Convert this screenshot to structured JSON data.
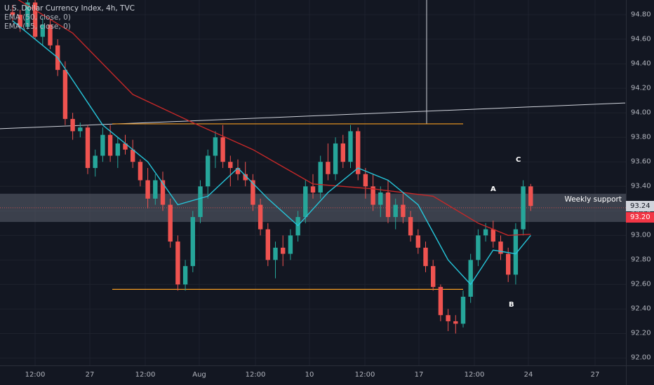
{
  "legend": {
    "title": "U.S. Dollar Currency Index, 4h, TVC",
    "ema50": "EMA (50, close, 0)",
    "ema15": "EMA (15, close, 0)"
  },
  "chart_data": {
    "type": "candlestick",
    "y_axis": {
      "ticks": [
        "94.80",
        "94.60",
        "94.40",
        "94.20",
        "94.00",
        "93.80",
        "93.60",
        "93.40",
        "93.20",
        "93.00",
        "92.80",
        "92.60",
        "92.40",
        "92.20",
        "92.00"
      ],
      "ylim": [
        91.94,
        94.92
      ]
    },
    "x_axis": {
      "ticks": [
        "12:00",
        "27",
        "12:00",
        "Aug",
        "12:00",
        "10",
        "12:00",
        "17",
        "12:00",
        "24",
        "27"
      ]
    },
    "price_tags": [
      {
        "value": "93.24",
        "style": "light"
      },
      {
        "value": "93.20",
        "style": "red"
      }
    ],
    "zones": [
      {
        "label": "Weekly support",
        "from": 93.11,
        "to": 93.34
      }
    ],
    "annotations": [
      {
        "text": "A",
        "y": 93.38
      },
      {
        "text": "B",
        "y": 92.48
      },
      {
        "text": "C",
        "y": 93.6
      }
    ],
    "horizontal_lines": [
      {
        "name": "resistance",
        "value": 93.91,
        "color": "#f59d20"
      },
      {
        "name": "support",
        "value": 92.56,
        "color": "#f59d20"
      }
    ],
    "colors": {
      "up": "#26a69a",
      "down": "#ef5350",
      "ema50": "#c62828",
      "ema15": "#26c6da",
      "zone": "#5d6270",
      "trend": "#d1d4dc",
      "background": "#131722"
    },
    "candles": [
      [
        94.82,
        94.88,
        94.74,
        94.8
      ],
      [
        94.8,
        94.84,
        94.66,
        94.7
      ],
      [
        94.7,
        94.92,
        94.68,
        94.9
      ],
      [
        94.9,
        94.92,
        94.6,
        94.62
      ],
      [
        94.62,
        94.78,
        94.55,
        94.72
      ],
      [
        94.72,
        94.76,
        94.52,
        94.55
      ],
      [
        94.55,
        94.6,
        94.3,
        94.35
      ],
      [
        94.35,
        94.42,
        93.9,
        93.95
      ],
      [
        93.95,
        94.0,
        93.78,
        93.85
      ],
      [
        93.85,
        93.92,
        93.8,
        93.88
      ],
      [
        93.88,
        93.9,
        93.5,
        93.55
      ],
      [
        93.55,
        93.7,
        93.48,
        93.65
      ],
      [
        93.65,
        93.88,
        93.6,
        93.82
      ],
      [
        93.82,
        93.9,
        93.6,
        93.65
      ],
      [
        93.65,
        93.8,
        93.55,
        93.75
      ],
      [
        93.75,
        93.82,
        93.66,
        93.7
      ],
      [
        93.7,
        93.78,
        93.55,
        93.6
      ],
      [
        93.6,
        93.62,
        93.4,
        93.45
      ],
      [
        93.45,
        93.55,
        93.22,
        93.3
      ],
      [
        93.3,
        93.5,
        93.25,
        93.45
      ],
      [
        93.45,
        93.52,
        93.2,
        93.25
      ],
      [
        93.25,
        93.3,
        92.9,
        92.95
      ],
      [
        92.95,
        93.0,
        92.55,
        92.6
      ],
      [
        92.6,
        92.8,
        92.55,
        92.75
      ],
      [
        92.75,
        93.2,
        92.7,
        93.15
      ],
      [
        93.15,
        93.45,
        93.1,
        93.4
      ],
      [
        93.4,
        93.7,
        93.3,
        93.65
      ],
      [
        93.65,
        93.85,
        93.55,
        93.8
      ],
      [
        93.8,
        93.9,
        93.55,
        93.6
      ],
      [
        93.6,
        93.65,
        93.4,
        93.55
      ],
      [
        93.55,
        93.62,
        93.45,
        93.5
      ],
      [
        93.5,
        93.6,
        93.4,
        93.45
      ],
      [
        93.45,
        93.5,
        93.2,
        93.25
      ],
      [
        93.25,
        93.3,
        93.0,
        93.05
      ],
      [
        93.05,
        93.1,
        92.75,
        92.8
      ],
      [
        92.8,
        92.95,
        92.65,
        92.9
      ],
      [
        92.9,
        93.0,
        92.75,
        92.85
      ],
      [
        92.85,
        93.05,
        92.8,
        93.0
      ],
      [
        93.0,
        93.2,
        92.95,
        93.15
      ],
      [
        93.15,
        93.45,
        93.1,
        93.4
      ],
      [
        93.4,
        93.5,
        93.3,
        93.35
      ],
      [
        93.35,
        93.65,
        93.3,
        93.6
      ],
      [
        93.6,
        93.75,
        93.45,
        93.5
      ],
      [
        93.5,
        93.8,
        93.45,
        93.75
      ],
      [
        93.75,
        93.82,
        93.55,
        93.6
      ],
      [
        93.6,
        93.9,
        93.55,
        93.85
      ],
      [
        93.85,
        93.88,
        93.45,
        93.5
      ],
      [
        93.5,
        93.55,
        93.3,
        93.4
      ],
      [
        93.4,
        93.5,
        93.2,
        93.25
      ],
      [
        93.25,
        93.4,
        93.15,
        93.35
      ],
      [
        93.35,
        93.45,
        93.1,
        93.15
      ],
      [
        93.15,
        93.3,
        93.05,
        93.25
      ],
      [
        93.25,
        93.35,
        93.1,
        93.15
      ],
      [
        93.15,
        93.2,
        92.95,
        93.0
      ],
      [
        93.0,
        93.05,
        92.85,
        92.9
      ],
      [
        92.9,
        92.95,
        92.7,
        92.75
      ],
      [
        92.75,
        92.8,
        92.55,
        92.58
      ],
      [
        92.58,
        92.6,
        92.3,
        92.35
      ],
      [
        92.35,
        92.4,
        92.22,
        92.3
      ],
      [
        92.3,
        92.35,
        92.2,
        92.28
      ],
      [
        92.28,
        92.55,
        92.25,
        92.5
      ],
      [
        92.5,
        92.85,
        92.45,
        92.8
      ],
      [
        92.8,
        93.05,
        92.75,
        93.0
      ],
      [
        93.0,
        93.1,
        92.95,
        93.05
      ],
      [
        93.05,
        93.12,
        92.9,
        92.95
      ],
      [
        92.95,
        93.0,
        92.8,
        92.85
      ],
      [
        92.85,
        92.9,
        92.62,
        92.68
      ],
      [
        92.68,
        93.1,
        92.6,
        93.05
      ],
      [
        93.05,
        93.45,
        93.0,
        93.4
      ],
      [
        93.4,
        93.42,
        93.2,
        93.24
      ]
    ],
    "ema50": [
      [
        0,
        94.95
      ],
      [
        8,
        94.65
      ],
      [
        16,
        94.15
      ],
      [
        24,
        93.92
      ],
      [
        32,
        93.7
      ],
      [
        40,
        93.42
      ],
      [
        48,
        93.38
      ],
      [
        56,
        93.32
      ],
      [
        62,
        93.1
      ],
      [
        66,
        93.0
      ],
      [
        69,
        93.01
      ]
    ],
    "ema15": [
      [
        0,
        94.75
      ],
      [
        6,
        94.45
      ],
      [
        12,
        93.9
      ],
      [
        18,
        93.6
      ],
      [
        22,
        93.25
      ],
      [
        26,
        93.32
      ],
      [
        30,
        93.55
      ],
      [
        34,
        93.3
      ],
      [
        38,
        93.08
      ],
      [
        42,
        93.35
      ],
      [
        46,
        93.55
      ],
      [
        50,
        93.45
      ],
      [
        54,
        93.25
      ],
      [
        58,
        92.8
      ],
      [
        61,
        92.6
      ],
      [
        64,
        92.88
      ],
      [
        67,
        92.85
      ],
      [
        69,
        93.0
      ]
    ],
    "trendline": {
      "from": [
        0,
        93.87
      ],
      "to": [
        891,
        94.08
      ]
    },
    "vertical_marker": {
      "x": 608,
      "from": 0,
      "to": 177
    }
  }
}
